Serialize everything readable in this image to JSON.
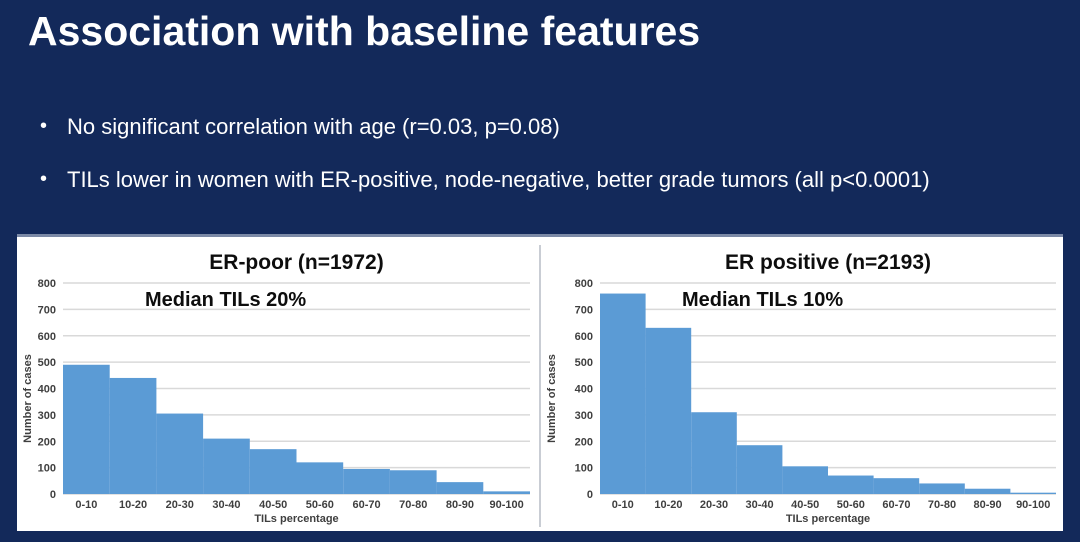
{
  "slide": {
    "title": "Association with baseline features",
    "bullets": [
      {
        "marker": "•",
        "text": "No significant correlation with age (r=0.03, p=0.08)"
      },
      {
        "marker": "•",
        "text": "TILs lower in women with ER-positive, node-negative, better grade tumors (all p<0.0001)"
      }
    ]
  },
  "colors": {
    "background": "#13295A",
    "panel": "#FFFFFF",
    "panel_top_border": "#7B89A6",
    "bar": "#5B9BD5",
    "gridline": "#D9D9D9",
    "axis_text": "#3F3F3F",
    "chart_text": "#0D0D0D",
    "divider": "#C9CDD4",
    "title_text": "#FFFFFF"
  },
  "chart_data": [
    {
      "type": "bar",
      "title": "ER-poor  (n=1972)",
      "annotation": "Median TILs 20%",
      "categories": [
        "0-10",
        "10-20",
        "20-30",
        "30-40",
        "40-50",
        "50-60",
        "60-70",
        "70-80",
        "80-90",
        "90-100"
      ],
      "values": [
        490,
        440,
        305,
        210,
        170,
        120,
        95,
        90,
        45,
        10
      ],
      "xlabel": "TILs percentage",
      "ylabel": "Number of cases",
      "ylim": [
        0,
        800
      ],
      "ytick_step": 100,
      "yticks": [
        0,
        100,
        200,
        300,
        400,
        500,
        600,
        700,
        800
      ],
      "grid": true,
      "legend_position": "none"
    },
    {
      "type": "bar",
      "title": "ER positive (n=2193)",
      "annotation": "Median TILs 10%",
      "categories": [
        "0-10",
        "10-20",
        "20-30",
        "30-40",
        "40-50",
        "50-60",
        "60-70",
        "70-80",
        "80-90",
        "90-100"
      ],
      "values": [
        760,
        630,
        310,
        185,
        105,
        70,
        60,
        40,
        20,
        5
      ],
      "xlabel": "TILs percentage",
      "ylabel": "Number of cases",
      "ylim": [
        0,
        800
      ],
      "ytick_step": 100,
      "yticks": [
        0,
        100,
        200,
        300,
        400,
        500,
        600,
        700,
        800
      ],
      "grid": true,
      "legend_position": "none"
    }
  ]
}
